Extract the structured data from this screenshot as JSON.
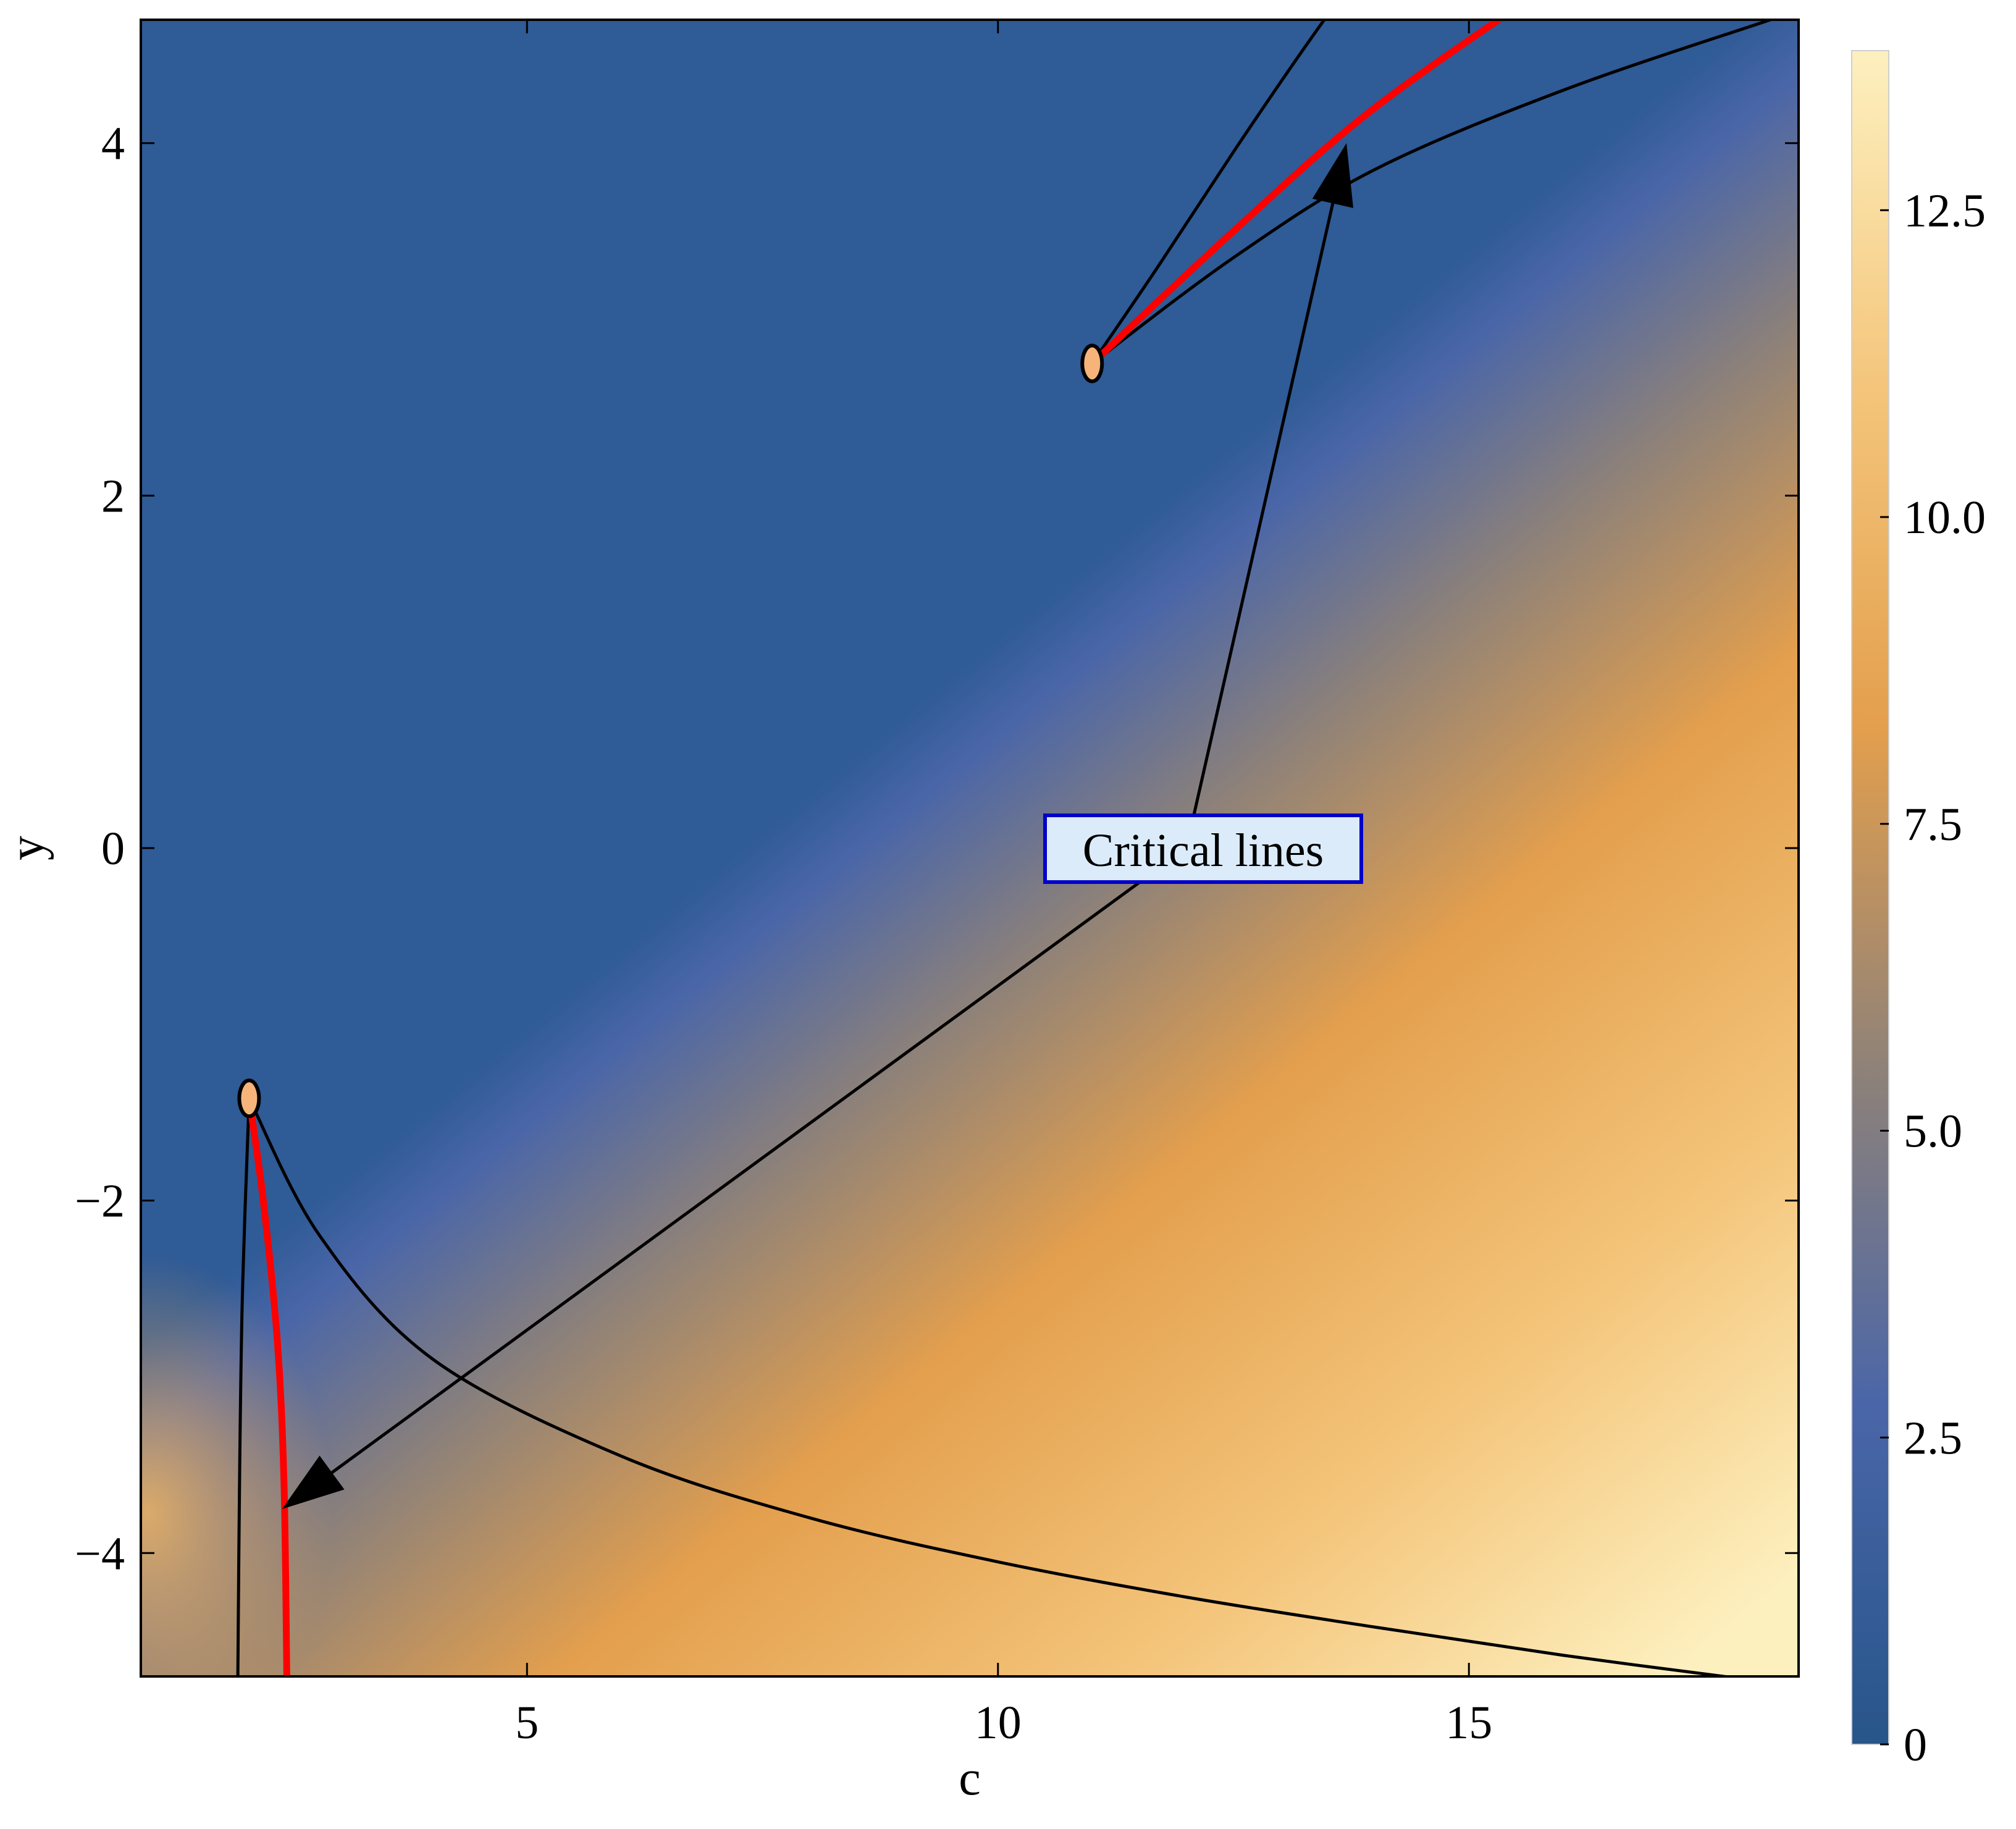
{
  "chart_data": {
    "type": "heatmap",
    "title": "",
    "xlabel": "c",
    "ylabel": "y",
    "xlim": [
      0.9,
      18.5
    ],
    "ylim": [
      -4.7,
      4.7
    ],
    "xticks": [
      5,
      10,
      15
    ],
    "yticks": [
      -4,
      -2,
      0,
      2,
      4
    ],
    "xtick_labels": [
      "5",
      "10",
      "15"
    ],
    "ytick_labels": [
      "−4",
      "−2",
      "0",
      "2",
      "4"
    ],
    "colorbar": {
      "range": [
        0,
        13.8
      ],
      "ticks": [
        0,
        2.5,
        5.0,
        7.5,
        10.0,
        12.5
      ],
      "tick_labels": [
        "0",
        "2.5",
        "5.0",
        "7.5",
        "10.0",
        "12.5"
      ],
      "colors": [
        "#27558a",
        "#4a66a8",
        "#8f8278",
        "#e39f4d",
        "#f4c57b",
        "#fdf0bf"
      ]
    },
    "critical_points": [
      {
        "c": 11.0,
        "y": 2.75
      },
      {
        "c": 2.05,
        "y": -1.42
      }
    ],
    "critical_lines": [
      {
        "color": "#ff0000",
        "points": [
          [
            11.0,
            2.75
          ],
          [
            12.5,
            3.5
          ],
          [
            14.0,
            4.2
          ],
          [
            16.0,
            4.95
          ]
        ]
      },
      {
        "color": "#ff0000",
        "points": [
          [
            2.05,
            -1.42
          ],
          [
            2.2,
            -2.0
          ],
          [
            2.35,
            -2.8
          ],
          [
            2.42,
            -3.6
          ],
          [
            2.45,
            -4.7
          ]
        ]
      }
    ],
    "boundary_lines": [
      {
        "color": "#000000",
        "points": [
          [
            11.0,
            2.75
          ],
          [
            11.7,
            3.3
          ],
          [
            12.5,
            3.95
          ],
          [
            13.2,
            4.5
          ],
          [
            13.8,
            4.95
          ]
        ]
      },
      {
        "color": "#000000",
        "points": [
          [
            11.0,
            2.75
          ],
          [
            12.5,
            3.35
          ],
          [
            14.0,
            3.85
          ],
          [
            16.0,
            4.3
          ],
          [
            18.2,
            4.7
          ]
        ]
      },
      {
        "color": "#000000",
        "points": [
          [
            2.05,
            -1.42
          ],
          [
            1.98,
            -2.5
          ],
          [
            1.95,
            -3.5
          ],
          [
            1.93,
            -4.7
          ]
        ]
      },
      {
        "color": "#000000",
        "points": [
          [
            2.05,
            -1.42
          ],
          [
            2.8,
            -2.2
          ],
          [
            4.0,
            -2.9
          ],
          [
            6.0,
            -3.45
          ],
          [
            8.0,
            -3.8
          ],
          [
            10.0,
            -4.05
          ],
          [
            12.0,
            -4.25
          ],
          [
            14.0,
            -4.42
          ],
          [
            16.0,
            -4.58
          ],
          [
            18.0,
            -4.72
          ]
        ]
      }
    ],
    "annotations": [
      {
        "text": "Critical lines",
        "c": 12.0,
        "y": 0.0,
        "arrows": [
          {
            "from": [
              12.0,
              0.0
            ],
            "to": [
              13.7,
              4.0
            ]
          },
          {
            "from": [
              12.0,
              0.0
            ],
            "to": [
              2.4,
              -3.75
            ]
          }
        ]
      }
    ]
  }
}
